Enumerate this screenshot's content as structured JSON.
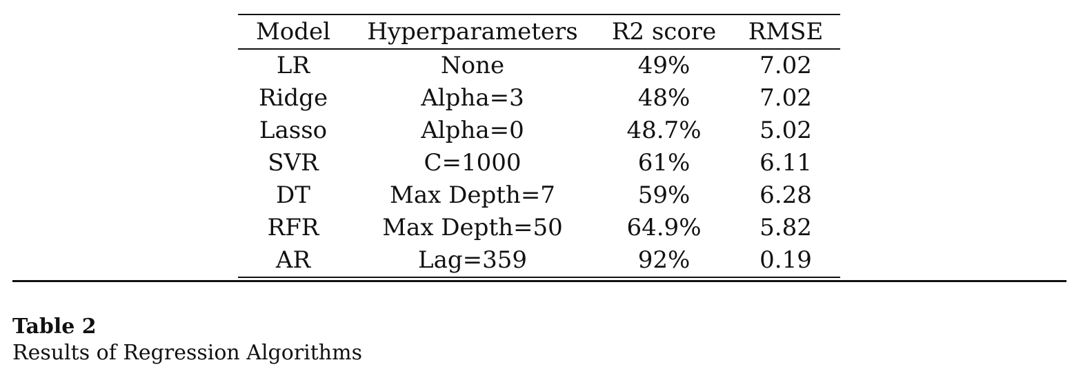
{
  "table": {
    "headers": [
      "Model",
      "Hyperparameters",
      "R2 score",
      "RMSE"
    ],
    "rows": [
      [
        "LR",
        "None",
        "49%",
        "7.02"
      ],
      [
        "Ridge",
        "Alpha=3",
        "48%",
        "7.02"
      ],
      [
        "Lasso",
        "Alpha=0",
        "48.7%",
        "5.02"
      ],
      [
        "SVR",
        "C=1000",
        "61%",
        "6.11"
      ],
      [
        "DT",
        "Max Depth=7",
        "59%",
        "6.28"
      ],
      [
        "RFR",
        "Max Depth=50",
        "64.9%",
        "5.82"
      ],
      [
        "AR",
        "Lag=359",
        "92%",
        "0.19"
      ]
    ]
  },
  "caption": {
    "label": "Table 2",
    "title": "Results of Regression Algorithms"
  }
}
